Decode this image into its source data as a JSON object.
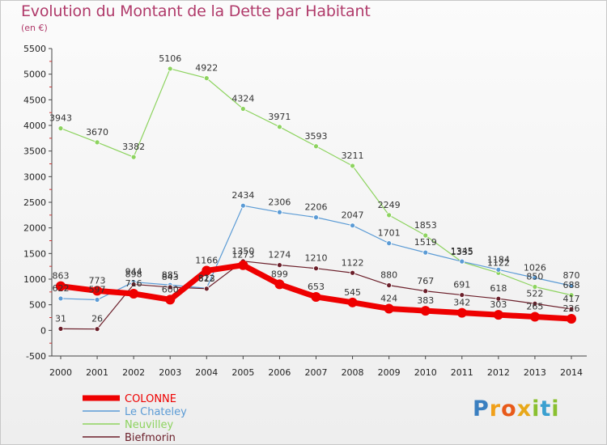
{
  "header": {
    "title": "Evolution du Montant de la Dette par Habitant",
    "unit": "(en €)"
  },
  "logo": {
    "text": "Proxiti"
  },
  "colors": {
    "COLONNE": "#ee0000",
    "Le Chateley": "#5b9bd5",
    "Neuvilley": "#8dd35f",
    "Biefmorin": "#6b1f2a",
    "title": "#b03a6a"
  },
  "chart_data": {
    "type": "line",
    "title": "Evolution du Montant de la Dette par Habitant",
    "ylabel": "(en €)",
    "x": [
      "2000",
      "2001",
      "2002",
      "2003",
      "2004",
      "2005",
      "2006",
      "2007",
      "2008",
      "2009",
      "2010",
      "2011",
      "2012",
      "2013",
      "2014"
    ],
    "ylim": [
      -500,
      5500
    ],
    "yticks": [
      -500,
      0,
      500,
      1000,
      1500,
      2000,
      2500,
      3000,
      3500,
      4000,
      4500,
      5000,
      5500
    ],
    "grid": false,
    "legend_position": "bottom-left",
    "series": [
      {
        "name": "COLONNE",
        "values": [
          863,
          773,
          716,
          600,
          1166,
          1273,
          899,
          653,
          545,
          424,
          383,
          342,
          303,
          265,
          226
        ]
      },
      {
        "name": "Le Chateley",
        "values": [
          622,
          597,
          944,
          885,
          822,
          2434,
          2306,
          2206,
          2047,
          1701,
          1519,
          1345,
          1184,
          1026,
          870
        ]
      },
      {
        "name": "Neuvilley",
        "values": [
          3943,
          3670,
          3382,
          5106,
          4922,
          4324,
          3971,
          3593,
          3211,
          2249,
          1853,
          1335,
          1122,
          850,
          688
        ]
      },
      {
        "name": "Biefmorin",
        "values": [
          31,
          26,
          898,
          843,
          813,
          1350,
          1274,
          1210,
          1122,
          880,
          767,
          691,
          618,
          522,
          417
        ]
      }
    ]
  }
}
